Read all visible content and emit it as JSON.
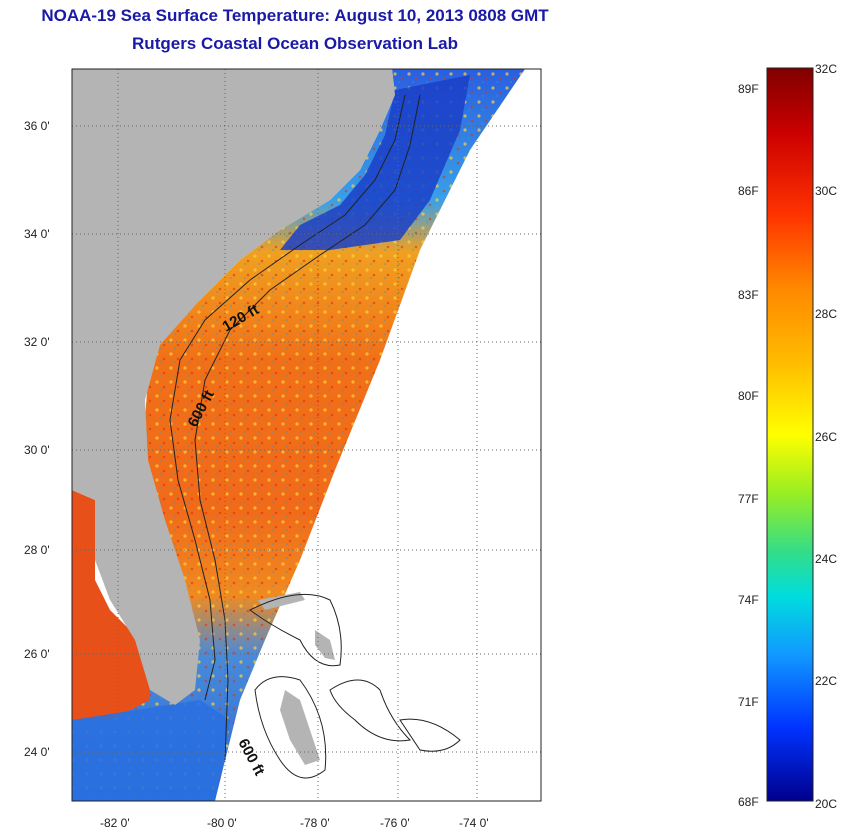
{
  "header": {
    "title": "NOAA-19 Sea Surface Temperature:  August 10, 2013 0808 GMT",
    "subtitle": "Rutgers Coastal Ocean Observation Lab"
  },
  "axes": {
    "lon_ticks": [
      "-82 0'",
      "-80 0'",
      "-78 0'",
      "-76 0'",
      "-74 0'"
    ],
    "lat_ticks": [
      "36 0'",
      "34 0'",
      "32 0'",
      "30 0'",
      "28 0'",
      "26 0'",
      "24 0'"
    ]
  },
  "isobaths": [
    {
      "label": "120 ft"
    },
    {
      "label": "600 ft"
    },
    {
      "label": "600 ft"
    }
  ],
  "colorbar": {
    "fahrenheit": [
      "89F",
      "86F",
      "83F",
      "80F",
      "77F",
      "74F",
      "71F",
      "68F"
    ],
    "celsius": [
      "32C",
      "30C",
      "28C",
      "26C",
      "24C",
      "22C",
      "20C"
    ],
    "colors": [
      "#800000",
      "#cc0000",
      "#ff3300",
      "#ff8800",
      "#ffbb00",
      "#ffff00",
      "#99ee22",
      "#33dd88",
      "#00dddd",
      "#1199ff",
      "#0033ff",
      "#00008c"
    ]
  },
  "colors": {
    "land": "#b4b4b4",
    "title": "#1a1aa6",
    "sst_warm": "#f07818",
    "sst_cool": "#1e4fd6"
  }
}
